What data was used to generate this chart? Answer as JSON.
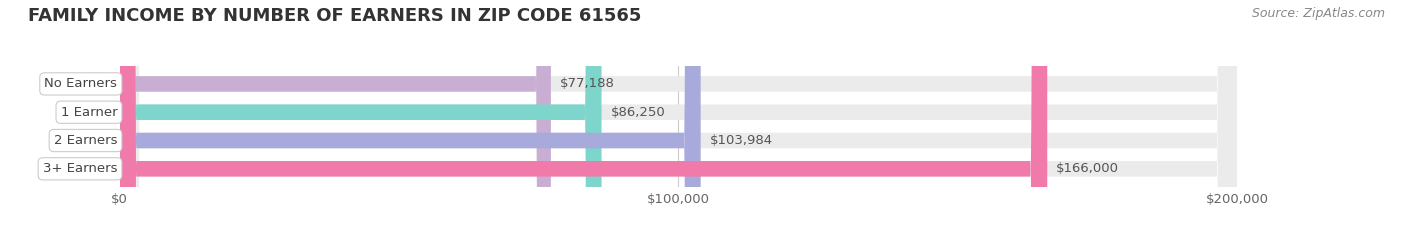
{
  "title": "FAMILY INCOME BY NUMBER OF EARNERS IN ZIP CODE 61565",
  "source": "Source: ZipAtlas.com",
  "categories": [
    "No Earners",
    "1 Earner",
    "2 Earners",
    "3+ Earners"
  ],
  "values": [
    77188,
    86250,
    103984,
    166000
  ],
  "labels": [
    "$77,188",
    "$86,250",
    "$103,984",
    "$166,000"
  ],
  "bar_colors": [
    "#c9aed4",
    "#7dd5cc",
    "#a8aadb",
    "#f07aaa"
  ],
  "xlim": [
    0,
    200000
  ],
  "xtick_labels": [
    "$0",
    "$100,000",
    "$200,000"
  ],
  "title_fontsize": 13,
  "tick_fontsize": 9.5,
  "bar_label_fontsize": 9.5,
  "category_fontsize": 9.5,
  "source_fontsize": 9,
  "bg_color": "#ffffff",
  "bar_height": 0.55
}
